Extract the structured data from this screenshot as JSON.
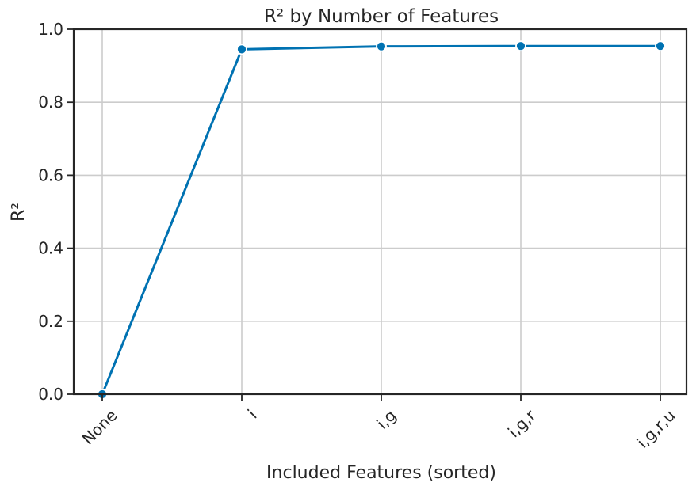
{
  "chart_data": {
    "type": "line",
    "title": "R² by Number of Features",
    "xlabel": "Included Features (sorted)",
    "ylabel": "R²",
    "categories": [
      "None",
      "i",
      "i,g",
      "i,g,r",
      "i,g,r,u"
    ],
    "series": [
      {
        "values": [
          0.0,
          0.945,
          0.953,
          0.954,
          0.954
        ]
      }
    ],
    "ylim": [
      0.0,
      1.0
    ],
    "yticks": [
      0.0,
      0.2,
      0.4,
      0.6,
      0.8,
      1.0
    ],
    "ytick_labels": [
      "0.0",
      "0.2",
      "0.4",
      "0.6",
      "0.8",
      "1.0"
    ],
    "grid": true,
    "legend": "none",
    "colors": {
      "line": "#0072b2",
      "grid": "#cccccc",
      "axes": "#262626"
    }
  }
}
